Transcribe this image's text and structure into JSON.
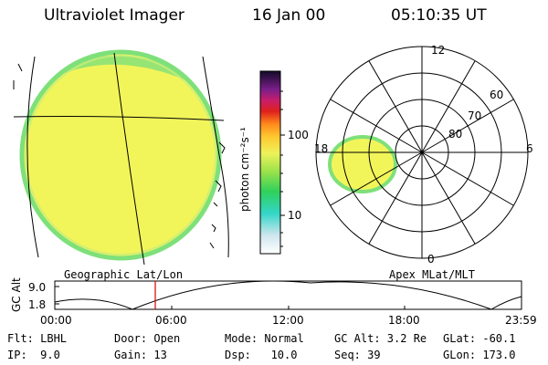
{
  "header": {
    "instrument": "Ultraviolet Imager",
    "date": "16 Jan 00",
    "time": "05:10:35 UT"
  },
  "colorbar": {
    "unit_label": "photon cm⁻²s⁻¹",
    "ticks": [
      "100",
      "10"
    ]
  },
  "polar_plot": {
    "mlt_labels": [
      "12",
      "18",
      "6",
      "0"
    ],
    "mlat_labels": [
      "60",
      "70",
      "80"
    ]
  },
  "map_labels": {
    "left": "Geographic Lat/Lon",
    "right": "Apex MLat/MLT"
  },
  "altitude_plot": {
    "ylabel": "GC Alt",
    "yticks": [
      "9.0",
      "1.8"
    ],
    "xticks": [
      "00:00",
      "06:00",
      "12:00",
      "18:00",
      "23:59"
    ],
    "marker_time": "05:10:35 UT"
  },
  "params": {
    "row1": {
      "flt": "Flt: LBHL",
      "door": "Door: Open",
      "mode": "Mode: Normal",
      "gc_alt": "GC Alt: 3.2 Re",
      "glat": "GLat: -60.1"
    },
    "row2": {
      "ip": "IP:  9.0",
      "gain": "Gain: 13",
      "dsp": "Dsp:   10.0",
      "seq": "Seq: 39",
      "glon": "GLon: 173.0"
    }
  },
  "colors": {
    "aurora_fill": "#f2f55a",
    "aurora_rim": "#7ee07a",
    "marker": "#d40000"
  }
}
